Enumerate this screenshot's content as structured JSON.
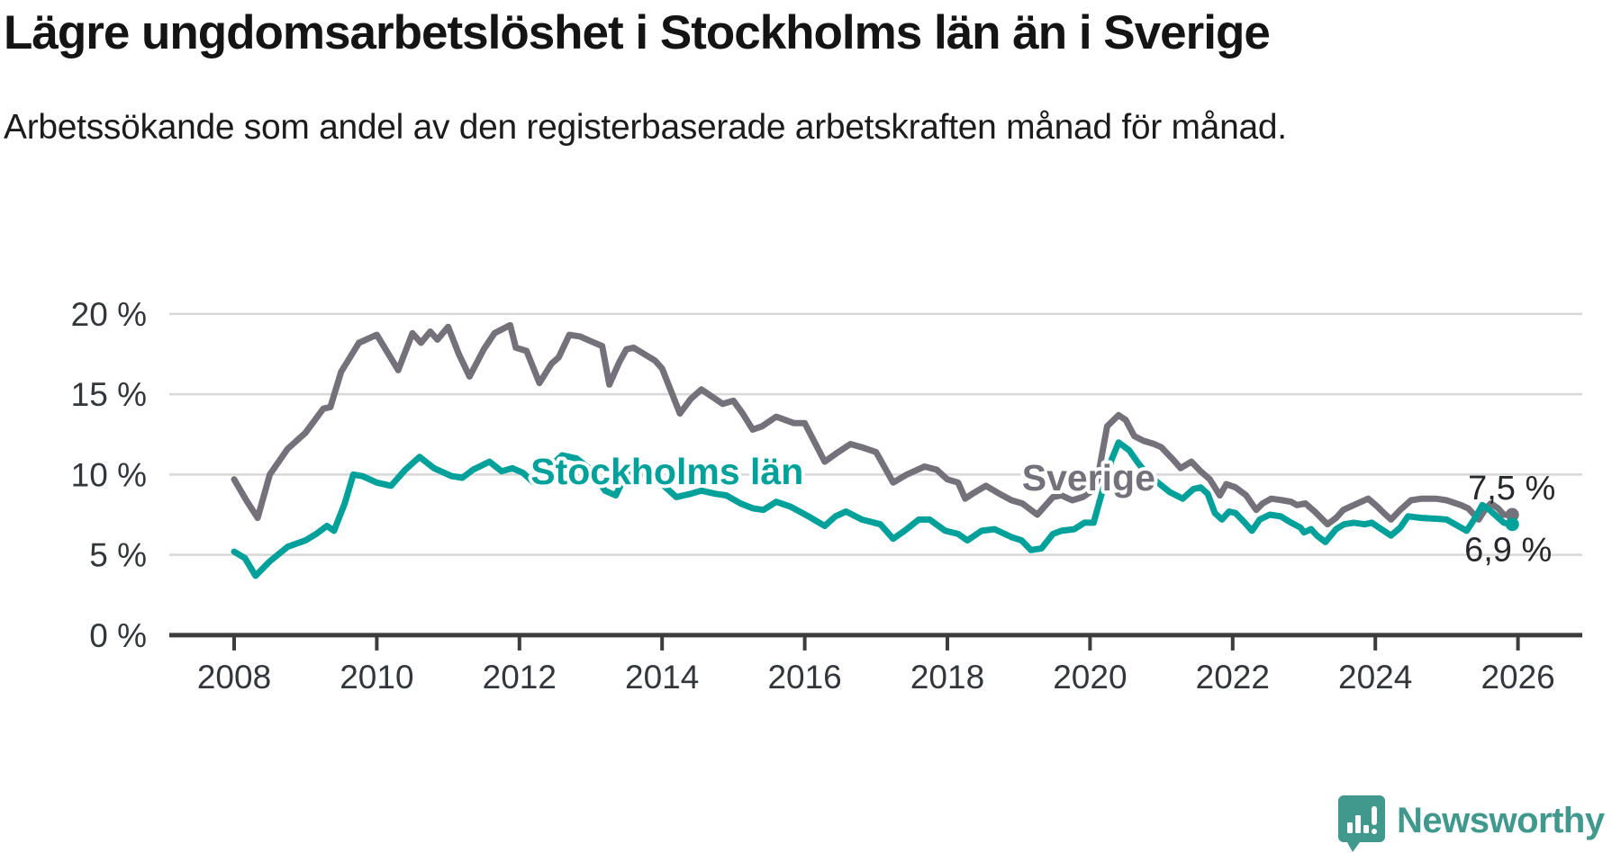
{
  "title": "Lägre ungdomsarbetslöshet i Stockholms län än i Sverige",
  "subtitle": "Arbetssökande som andel av den registerbaserade arbetskraften månad för månad.",
  "footer": {
    "brand": "Newsworthy"
  },
  "colors": {
    "stockholm_line": "#00a19a",
    "sverige_line": "#75717b",
    "grid": "#d8d8d8",
    "axis": "#3c3c3c",
    "tick_text": "#33363b",
    "end_label_text": "#26282b",
    "brand": "#41998e",
    "background": "#ffffff"
  },
  "chart_data": {
    "type": "line",
    "title": "Lägre ungdomsarbetslöshet i Stockholms län än i Sverige",
    "subtitle": "Arbetssökande som andel av den registerbaserade arbetskraften månad för månad.",
    "xlabel": "",
    "ylabel": "",
    "grid": "horizontal",
    "legend_position": "inline-labels",
    "xlim": [
      2007.1,
      2026.9
    ],
    "ylim": [
      0,
      20
    ],
    "x_tick_years": [
      2008,
      2010,
      2012,
      2014,
      2016,
      2018,
      2020,
      2022,
      2024,
      2026
    ],
    "x_tick_labels": [
      "2008",
      "2010",
      "2012",
      "2014",
      "2016",
      "2018",
      "2020",
      "2022",
      "2024",
      "2026"
    ],
    "y_ticks": [
      0,
      5,
      10,
      15,
      20
    ],
    "y_tick_labels": [
      "0 %",
      "5 %",
      "10 %",
      "15 %",
      "20 %"
    ],
    "series": [
      {
        "name": "Sverige",
        "color": "#75717b",
        "end_value": 7.5,
        "end_label": "7,5 %",
        "inline_label": {
          "text": "Sverige",
          "x": 2019.98,
          "y": 9.8
        },
        "points": [
          [
            2008.0,
            9.7
          ],
          [
            2008.17,
            8.4
          ],
          [
            2008.33,
            7.3
          ],
          [
            2008.5,
            10.0
          ],
          [
            2008.75,
            11.6
          ],
          [
            2009.0,
            12.6
          ],
          [
            2009.25,
            14.1
          ],
          [
            2009.35,
            14.2
          ],
          [
            2009.5,
            16.4
          ],
          [
            2009.75,
            18.2
          ],
          [
            2010.0,
            18.7
          ],
          [
            2010.15,
            17.6
          ],
          [
            2010.3,
            16.5
          ],
          [
            2010.5,
            18.8
          ],
          [
            2010.62,
            18.2
          ],
          [
            2010.75,
            18.9
          ],
          [
            2010.85,
            18.4
          ],
          [
            2011.0,
            19.2
          ],
          [
            2011.15,
            17.5
          ],
          [
            2011.3,
            16.1
          ],
          [
            2011.5,
            17.8
          ],
          [
            2011.65,
            18.8
          ],
          [
            2011.87,
            19.3
          ],
          [
            2011.95,
            17.9
          ],
          [
            2012.1,
            17.7
          ],
          [
            2012.28,
            15.7
          ],
          [
            2012.45,
            16.9
          ],
          [
            2012.55,
            17.3
          ],
          [
            2012.7,
            18.7
          ],
          [
            2012.85,
            18.6
          ],
          [
            2013.0,
            18.3
          ],
          [
            2013.16,
            18.0
          ],
          [
            2013.26,
            15.6
          ],
          [
            2013.4,
            17.0
          ],
          [
            2013.5,
            17.8
          ],
          [
            2013.6,
            17.9
          ],
          [
            2013.75,
            17.5
          ],
          [
            2013.9,
            17.1
          ],
          [
            2014.0,
            16.6
          ],
          [
            2014.25,
            13.8
          ],
          [
            2014.4,
            14.7
          ],
          [
            2014.55,
            15.3
          ],
          [
            2014.75,
            14.7
          ],
          [
            2014.85,
            14.4
          ],
          [
            2015.0,
            14.6
          ],
          [
            2015.13,
            13.8
          ],
          [
            2015.27,
            12.8
          ],
          [
            2015.4,
            13.0
          ],
          [
            2015.6,
            13.6
          ],
          [
            2015.85,
            13.2
          ],
          [
            2016.0,
            13.2
          ],
          [
            2016.28,
            10.8
          ],
          [
            2016.47,
            11.4
          ],
          [
            2016.64,
            11.9
          ],
          [
            2016.8,
            11.7
          ],
          [
            2017.0,
            11.4
          ],
          [
            2017.24,
            9.5
          ],
          [
            2017.43,
            10.0
          ],
          [
            2017.68,
            10.5
          ],
          [
            2017.85,
            10.3
          ],
          [
            2018.0,
            9.7
          ],
          [
            2018.15,
            9.5
          ],
          [
            2018.25,
            8.5
          ],
          [
            2018.35,
            8.8
          ],
          [
            2018.54,
            9.3
          ],
          [
            2018.73,
            8.8
          ],
          [
            2018.9,
            8.4
          ],
          [
            2019.05,
            8.2
          ],
          [
            2019.26,
            7.5
          ],
          [
            2019.48,
            8.6
          ],
          [
            2019.6,
            8.7
          ],
          [
            2019.75,
            8.4
          ],
          [
            2019.9,
            8.6
          ],
          [
            2020.0,
            8.9
          ],
          [
            2020.1,
            9.6
          ],
          [
            2020.24,
            13.0
          ],
          [
            2020.4,
            13.7
          ],
          [
            2020.5,
            13.4
          ],
          [
            2020.62,
            12.4
          ],
          [
            2020.75,
            12.1
          ],
          [
            2020.9,
            11.9
          ],
          [
            2021.0,
            11.7
          ],
          [
            2021.17,
            10.9
          ],
          [
            2021.27,
            10.4
          ],
          [
            2021.42,
            10.8
          ],
          [
            2021.55,
            10.2
          ],
          [
            2021.68,
            9.7
          ],
          [
            2021.82,
            8.7
          ],
          [
            2021.91,
            9.4
          ],
          [
            2022.04,
            9.2
          ],
          [
            2022.19,
            8.7
          ],
          [
            2022.33,
            7.8
          ],
          [
            2022.42,
            8.2
          ],
          [
            2022.54,
            8.5
          ],
          [
            2022.7,
            8.4
          ],
          [
            2022.82,
            8.3
          ],
          [
            2022.9,
            8.1
          ],
          [
            2023.02,
            8.2
          ],
          [
            2023.15,
            7.7
          ],
          [
            2023.33,
            6.9
          ],
          [
            2023.45,
            7.3
          ],
          [
            2023.55,
            7.8
          ],
          [
            2023.65,
            8.0
          ],
          [
            2023.8,
            8.3
          ],
          [
            2023.9,
            8.5
          ],
          [
            2024.03,
            8.0
          ],
          [
            2024.12,
            7.6
          ],
          [
            2024.22,
            7.2
          ],
          [
            2024.35,
            7.8
          ],
          [
            2024.5,
            8.4
          ],
          [
            2024.65,
            8.5
          ],
          [
            2024.85,
            8.5
          ],
          [
            2025.0,
            8.4
          ],
          [
            2025.2,
            8.1
          ],
          [
            2025.3,
            7.9
          ],
          [
            2025.45,
            7.2
          ],
          [
            2025.55,
            7.9
          ],
          [
            2025.62,
            8.2
          ],
          [
            2025.72,
            7.9
          ],
          [
            2025.8,
            7.5
          ],
          [
            2025.92,
            7.5
          ]
        ]
      },
      {
        "name": "Stockholms län",
        "color": "#00a19a",
        "end_value": 6.9,
        "end_label": "6,9 %",
        "inline_label": {
          "text": "Stockholms län",
          "x": 2014.07,
          "y": 10.2
        },
        "points": [
          [
            2008.0,
            5.2
          ],
          [
            2008.15,
            4.8
          ],
          [
            2008.3,
            3.7
          ],
          [
            2008.5,
            4.6
          ],
          [
            2008.75,
            5.5
          ],
          [
            2009.0,
            5.9
          ],
          [
            2009.15,
            6.3
          ],
          [
            2009.3,
            6.8
          ],
          [
            2009.4,
            6.5
          ],
          [
            2009.55,
            8.2
          ],
          [
            2009.67,
            10.0
          ],
          [
            2009.8,
            9.9
          ],
          [
            2010.0,
            9.5
          ],
          [
            2010.2,
            9.3
          ],
          [
            2010.4,
            10.3
          ],
          [
            2010.6,
            11.1
          ],
          [
            2010.8,
            10.4
          ],
          [
            2011.05,
            9.9
          ],
          [
            2011.2,
            9.8
          ],
          [
            2011.35,
            10.3
          ],
          [
            2011.58,
            10.8
          ],
          [
            2011.75,
            10.2
          ],
          [
            2011.9,
            10.4
          ],
          [
            2012.05,
            10.1
          ],
          [
            2012.2,
            9.5
          ],
          [
            2012.4,
            10.4
          ],
          [
            2012.6,
            11.2
          ],
          [
            2012.8,
            11.0
          ],
          [
            2013.0,
            10.3
          ],
          [
            2013.2,
            9.0
          ],
          [
            2013.35,
            8.7
          ],
          [
            2013.5,
            10.1
          ],
          [
            2013.65,
            10.4
          ],
          [
            2013.8,
            9.8
          ],
          [
            2014.0,
            9.4
          ],
          [
            2014.2,
            8.6
          ],
          [
            2014.4,
            8.8
          ],
          [
            2014.55,
            9.0
          ],
          [
            2014.75,
            8.8
          ],
          [
            2014.9,
            8.7
          ],
          [
            2015.1,
            8.2
          ],
          [
            2015.27,
            7.9
          ],
          [
            2015.42,
            7.8
          ],
          [
            2015.6,
            8.3
          ],
          [
            2015.8,
            8.0
          ],
          [
            2016.05,
            7.4
          ],
          [
            2016.28,
            6.8
          ],
          [
            2016.43,
            7.4
          ],
          [
            2016.58,
            7.7
          ],
          [
            2016.8,
            7.2
          ],
          [
            2017.06,
            6.9
          ],
          [
            2017.24,
            6.0
          ],
          [
            2017.4,
            6.5
          ],
          [
            2017.6,
            7.2
          ],
          [
            2017.75,
            7.2
          ],
          [
            2017.97,
            6.5
          ],
          [
            2018.15,
            6.3
          ],
          [
            2018.28,
            5.9
          ],
          [
            2018.48,
            6.5
          ],
          [
            2018.66,
            6.6
          ],
          [
            2018.9,
            6.1
          ],
          [
            2019.04,
            5.9
          ],
          [
            2019.17,
            5.3
          ],
          [
            2019.32,
            5.4
          ],
          [
            2019.48,
            6.3
          ],
          [
            2019.6,
            6.5
          ],
          [
            2019.78,
            6.6
          ],
          [
            2019.92,
            7.0
          ],
          [
            2020.05,
            7.0
          ],
          [
            2020.15,
            8.6
          ],
          [
            2020.3,
            10.9
          ],
          [
            2020.4,
            12.0
          ],
          [
            2020.55,
            11.5
          ],
          [
            2020.66,
            10.8
          ],
          [
            2020.8,
            10.0
          ],
          [
            2020.95,
            9.5
          ],
          [
            2021.12,
            8.9
          ],
          [
            2021.3,
            8.5
          ],
          [
            2021.45,
            9.1
          ],
          [
            2021.55,
            9.2
          ],
          [
            2021.65,
            8.8
          ],
          [
            2021.75,
            7.6
          ],
          [
            2021.85,
            7.2
          ],
          [
            2021.95,
            7.7
          ],
          [
            2022.04,
            7.6
          ],
          [
            2022.17,
            7.0
          ],
          [
            2022.27,
            6.5
          ],
          [
            2022.38,
            7.2
          ],
          [
            2022.52,
            7.5
          ],
          [
            2022.67,
            7.4
          ],
          [
            2022.82,
            7.0
          ],
          [
            2022.95,
            6.7
          ],
          [
            2023.0,
            6.4
          ],
          [
            2023.1,
            6.6
          ],
          [
            2023.18,
            6.2
          ],
          [
            2023.3,
            5.8
          ],
          [
            2023.45,
            6.6
          ],
          [
            2023.56,
            6.9
          ],
          [
            2023.7,
            7.0
          ],
          [
            2023.85,
            6.9
          ],
          [
            2023.95,
            7.0
          ],
          [
            2024.05,
            6.7
          ],
          [
            2024.12,
            6.5
          ],
          [
            2024.22,
            6.2
          ],
          [
            2024.35,
            6.7
          ],
          [
            2024.46,
            7.4
          ],
          [
            2024.65,
            7.3
          ],
          [
            2024.85,
            7.25
          ],
          [
            2025.0,
            7.2
          ],
          [
            2025.2,
            6.7
          ],
          [
            2025.28,
            6.5
          ],
          [
            2025.4,
            7.3
          ],
          [
            2025.5,
            8.1
          ],
          [
            2025.6,
            7.8
          ],
          [
            2025.7,
            7.4
          ],
          [
            2025.8,
            7.0
          ],
          [
            2025.92,
            6.9
          ]
        ]
      }
    ]
  }
}
